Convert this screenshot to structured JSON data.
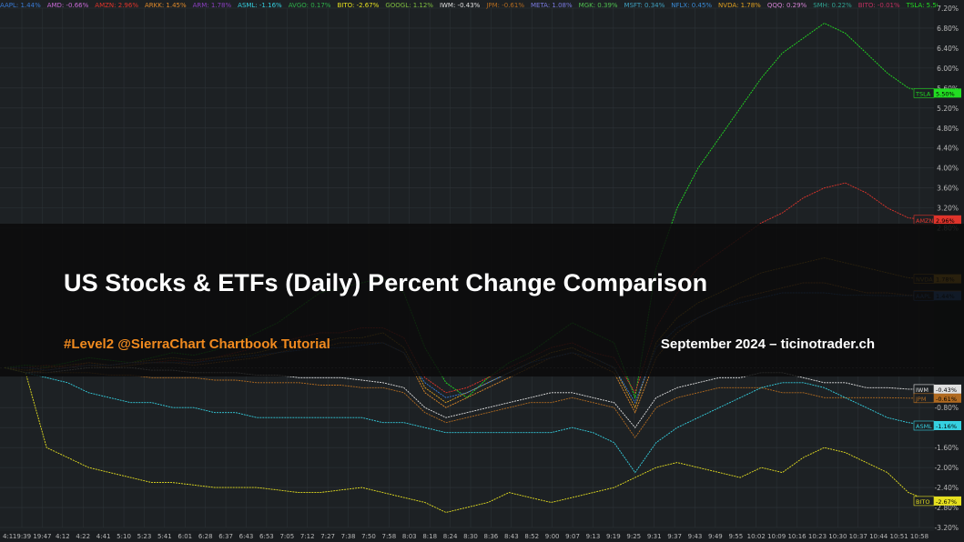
{
  "banner": {
    "title": "US Stocks & ETFs (Daily) Percent Change Comparison",
    "subtitle": "#Level2 @SierraChart Chartbook Tutorial",
    "right_text": "September 2024 – ticinotrader.ch"
  },
  "tickers": [
    {
      "label": "AAPL: 1.44%",
      "color": "#3a7bd5"
    },
    {
      "label": "AMD: -0.66%",
      "color": "#c86ad6"
    },
    {
      "label": "AMZN: 2.96%",
      "color": "#e0342b"
    },
    {
      "label": "ARKK: 1.45%",
      "color": "#e08a2a"
    },
    {
      "label": "ARM: 1.78%",
      "color": "#8a3fc0"
    },
    {
      "label": "ASML: -1.16%",
      "color": "#35d0e0"
    },
    {
      "label": "AVGO: 0.17%",
      "color": "#2fb04a"
    },
    {
      "label": "BITO: -2.67%",
      "color": "#e6e020"
    },
    {
      "label": "GOOGL: 1.12%",
      "color": "#7fbf40"
    },
    {
      "label": "IWM: -0.43%",
      "color": "#e0e0e0"
    },
    {
      "label": "JPM: -0.61%",
      "color": "#b06a20"
    },
    {
      "label": "META: 1.08%",
      "color": "#7a7ae0"
    },
    {
      "label": "MGK: 0.39%",
      "color": "#50c050"
    },
    {
      "label": "MSFT: 0.34%",
      "color": "#40a0c0"
    },
    {
      "label": "NFLX: 0.45%",
      "color": "#3a8ad5"
    },
    {
      "label": "NVDA: 1.78%",
      "color": "#e0a020"
    },
    {
      "label": "QQQ: 0.29%",
      "color": "#d080d0"
    },
    {
      "label": "SMH: 0.22%",
      "color": "#30a090"
    },
    {
      "label": "BITO: -0.01%",
      "color": "#c03060"
    },
    {
      "label": "TSLA: 5.50%",
      "color": "#22dd22"
    }
  ],
  "colors": {
    "background": "#1d2124",
    "grid": "#2e3438",
    "axis_text": "#b8b8b8",
    "banner_bg": "#0a0a0a",
    "accent_orange": "#f08a1f"
  },
  "chart_data": {
    "type": "line",
    "ylim": [
      -3.2,
      7.2
    ],
    "yticks": [
      "7.20%",
      "6.80%",
      "6.40%",
      "6.00%",
      "5.60%",
      "5.20%",
      "4.80%",
      "4.40%",
      "4.00%",
      "3.60%",
      "3.20%",
      "2.80%",
      "-0.80%",
      "-1.20%",
      "-1.60%",
      "-2.00%",
      "-2.40%",
      "-2.80%",
      "-3.20%"
    ],
    "xticks": [
      "19:39",
      "19:47",
      "4:12",
      "4:22",
      "4:41",
      "5:10",
      "5:23",
      "5:41",
      "6:01",
      "6:28",
      "6:37",
      "6:43",
      "6:53",
      "7:05",
      "7:12",
      "7:27",
      "7:38",
      "7:50",
      "7:58",
      "8:03",
      "8:18",
      "8:24",
      "8:30",
      "8:36",
      "8:43",
      "8:52",
      "9:00",
      "9:07",
      "9:13",
      "9:19",
      "9:25",
      "9:31",
      "9:37",
      "9:43",
      "9:49",
      "9:55",
      "10:02",
      "10:09",
      "10:16",
      "10:23",
      "10:30",
      "10:37",
      "10:44",
      "10:51",
      "10:58"
    ],
    "x_start_tag": "4:1",
    "series": [
      {
        "name": "TSLA",
        "color": "#22dd22",
        "values": [
          0.0,
          0.05,
          0.02,
          0.1,
          0.2,
          0.15,
          0.1,
          0.2,
          0.3,
          0.25,
          0.35,
          0.5,
          0.7,
          0.9,
          1.2,
          1.5,
          1.6,
          1.7,
          1.8,
          1.5,
          0.4,
          -0.3,
          -0.6,
          -0.2,
          0.1,
          0.3,
          0.6,
          0.9,
          0.7,
          0.5,
          -0.6,
          2.0,
          3.2,
          4.0,
          4.6,
          5.2,
          5.8,
          6.3,
          6.6,
          6.9,
          6.7,
          6.3,
          5.9,
          5.6,
          5.5
        ],
        "end_label": "5.50%"
      },
      {
        "name": "AMZN",
        "color": "#e0342b",
        "values": [
          0.0,
          0.0,
          0.05,
          0.0,
          0.1,
          0.05,
          0.1,
          0.1,
          0.15,
          0.1,
          0.2,
          0.3,
          0.4,
          0.5,
          0.6,
          0.7,
          0.7,
          0.8,
          0.8,
          0.6,
          -0.2,
          -0.5,
          -0.4,
          -0.2,
          0.0,
          0.2,
          0.4,
          0.5,
          0.3,
          0.2,
          -0.5,
          0.8,
          1.5,
          2.0,
          2.3,
          2.6,
          2.9,
          3.1,
          3.4,
          3.6,
          3.7,
          3.5,
          3.2,
          3.0,
          2.96
        ],
        "end_label": "2.96%"
      },
      {
        "name": "NVDA",
        "color": "#e0a020",
        "values": [
          0.0,
          -0.05,
          0.0,
          0.05,
          0.1,
          0.05,
          0.1,
          0.15,
          0.2,
          0.15,
          0.2,
          0.25,
          0.3,
          0.4,
          0.5,
          0.5,
          0.6,
          0.6,
          0.7,
          0.4,
          -0.4,
          -0.7,
          -0.5,
          -0.3,
          -0.1,
          0.1,
          0.3,
          0.4,
          0.2,
          0.0,
          -0.8,
          0.5,
          1.0,
          1.3,
          1.5,
          1.7,
          1.9,
          2.0,
          2.1,
          2.2,
          2.1,
          2.0,
          1.9,
          1.8,
          1.78
        ],
        "end_label": "1.78%"
      },
      {
        "name": "ARKK",
        "color": "#e08a2a",
        "values": [
          0.0,
          -0.1,
          -0.05,
          0.0,
          0.05,
          0.0,
          0.05,
          0.1,
          0.1,
          0.05,
          0.1,
          0.15,
          0.2,
          0.3,
          0.4,
          0.4,
          0.5,
          0.5,
          0.5,
          0.3,
          -0.5,
          -0.8,
          -0.6,
          -0.4,
          -0.2,
          0.0,
          0.2,
          0.3,
          0.1,
          -0.1,
          -0.9,
          0.2,
          0.7,
          1.0,
          1.2,
          1.4,
          1.5,
          1.6,
          1.7,
          1.7,
          1.6,
          1.5,
          1.5,
          1.45,
          1.45
        ],
        "end_label": "1.45%"
      },
      {
        "name": "AAPL",
        "color": "#3a7bd5",
        "values": [
          0.0,
          0.0,
          -0.05,
          0.0,
          0.05,
          0.05,
          0.1,
          0.1,
          0.1,
          0.1,
          0.15,
          0.2,
          0.25,
          0.3,
          0.35,
          0.4,
          0.4,
          0.45,
          0.5,
          0.3,
          -0.3,
          -0.6,
          -0.5,
          -0.3,
          -0.1,
          0.1,
          0.2,
          0.3,
          0.2,
          0.0,
          -0.7,
          0.4,
          0.8,
          1.0,
          1.2,
          1.3,
          1.4,
          1.5,
          1.5,
          1.5,
          1.45,
          1.45,
          1.44,
          1.44,
          1.44
        ],
        "end_label": "1.44%"
      },
      {
        "name": "IWM",
        "color": "#e0e0e0",
        "values": [
          0.0,
          -0.1,
          -0.1,
          -0.05,
          0.0,
          0.0,
          0.0,
          -0.05,
          -0.05,
          -0.1,
          -0.1,
          -0.1,
          -0.15,
          -0.15,
          -0.2,
          -0.2,
          -0.2,
          -0.25,
          -0.3,
          -0.4,
          -0.8,
          -1.0,
          -0.9,
          -0.8,
          -0.7,
          -0.6,
          -0.5,
          -0.5,
          -0.6,
          -0.7,
          -1.2,
          -0.6,
          -0.4,
          -0.3,
          -0.2,
          -0.2,
          -0.1,
          -0.1,
          -0.2,
          -0.3,
          -0.3,
          -0.4,
          -0.4,
          -0.43,
          -0.43
        ],
        "end_label": "-0.43%"
      },
      {
        "name": "JPM",
        "color": "#b06a20",
        "values": [
          0.0,
          -0.05,
          -0.1,
          -0.1,
          -0.1,
          -0.15,
          -0.15,
          -0.2,
          -0.2,
          -0.2,
          -0.25,
          -0.25,
          -0.3,
          -0.3,
          -0.3,
          -0.35,
          -0.35,
          -0.4,
          -0.4,
          -0.5,
          -0.9,
          -1.1,
          -1.0,
          -0.9,
          -0.8,
          -0.7,
          -0.7,
          -0.6,
          -0.7,
          -0.8,
          -1.4,
          -0.8,
          -0.6,
          -0.5,
          -0.4,
          -0.4,
          -0.4,
          -0.5,
          -0.5,
          -0.6,
          -0.6,
          -0.6,
          -0.6,
          -0.61,
          -0.61
        ],
        "end_label": "-0.61%"
      },
      {
        "name": "ASML",
        "color": "#35d0e0",
        "values": [
          0.0,
          -0.1,
          -0.2,
          -0.3,
          -0.5,
          -0.6,
          -0.7,
          -0.7,
          -0.8,
          -0.8,
          -0.9,
          -0.9,
          -1.0,
          -1.0,
          -1.0,
          -1.0,
          -1.0,
          -1.0,
          -1.1,
          -1.1,
          -1.2,
          -1.3,
          -1.3,
          -1.3,
          -1.3,
          -1.3,
          -1.3,
          -1.2,
          -1.3,
          -1.5,
          -2.1,
          -1.5,
          -1.2,
          -1.0,
          -0.8,
          -0.6,
          -0.4,
          -0.3,
          -0.3,
          -0.4,
          -0.6,
          -0.8,
          -1.0,
          -1.1,
          -1.16
        ],
        "end_label": "-1.16%"
      },
      {
        "name": "BITO",
        "color": "#e6e020",
        "values": [
          0.0,
          -0.1,
          -1.6,
          -1.8,
          -2.0,
          -2.1,
          -2.2,
          -2.3,
          -2.3,
          -2.35,
          -2.4,
          -2.4,
          -2.4,
          -2.45,
          -2.5,
          -2.5,
          -2.45,
          -2.4,
          -2.5,
          -2.6,
          -2.7,
          -2.9,
          -2.8,
          -2.7,
          -2.5,
          -2.6,
          -2.7,
          -2.6,
          -2.5,
          -2.4,
          -2.2,
          -2.0,
          -1.9,
          -2.0,
          -2.1,
          -2.2,
          -2.0,
          -2.1,
          -1.8,
          -1.6,
          -1.7,
          -1.9,
          -2.1,
          -2.5,
          -2.67
        ],
        "end_label": "-2.67%"
      }
    ]
  }
}
